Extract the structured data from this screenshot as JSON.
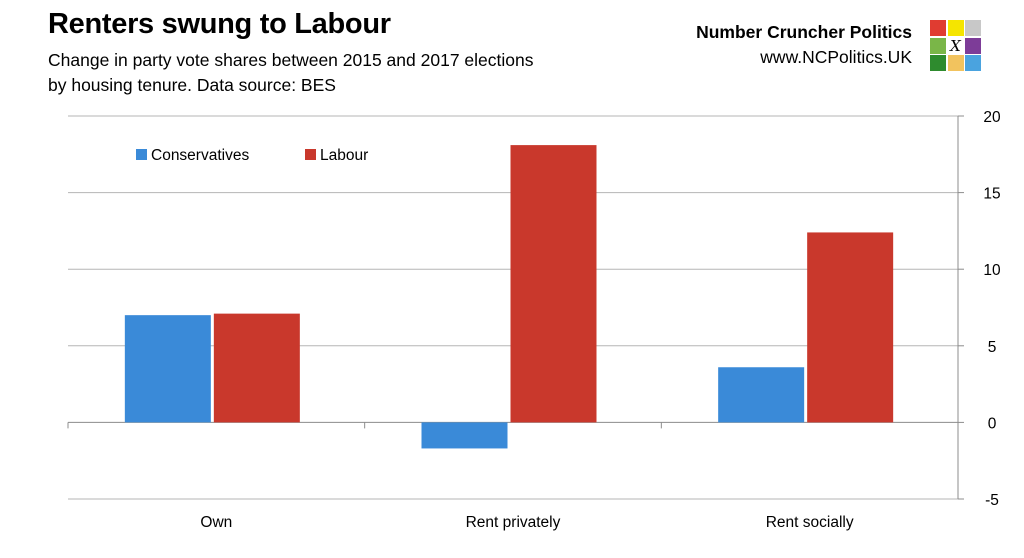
{
  "title": "Renters swung to Labour",
  "subtitle_line1": "Change in party vote shares between 2015 and 2017 elections",
  "subtitle_line2": "by housing tenure. Data source: BES",
  "brand": {
    "name": "Number Cruncher Politics",
    "url": "www.NCPolitics.UK",
    "logo_mark": "X",
    "logo_colors": [
      "#e03c31",
      "#f5e500",
      "#c8c8c8",
      "#7ab648",
      "#ffffff",
      "#7d3c98",
      "#2e8b2e",
      "#f2c35e",
      "#4aa3df"
    ],
    "logo_icon": "ballot-grid-icon"
  },
  "chart_data": {
    "type": "bar",
    "categories": [
      "Own",
      "Rent privately",
      "Rent socially"
    ],
    "series": [
      {
        "name": "Conservatives",
        "color": "#3a8ad8",
        "values": [
          7.0,
          -1.7,
          3.6
        ]
      },
      {
        "name": "Labour",
        "color": "#c9382c",
        "values": [
          7.1,
          18.1,
          12.4
        ]
      }
    ],
    "ylim": [
      -5,
      20
    ],
    "yticks": [
      "20",
      "15",
      "10",
      "5",
      "0",
      "-5"
    ],
    "ytick_values": [
      20,
      15,
      10,
      5,
      0,
      -5
    ],
    "y_axis_side": "right",
    "grid": true,
    "legend_position": "top-left"
  }
}
